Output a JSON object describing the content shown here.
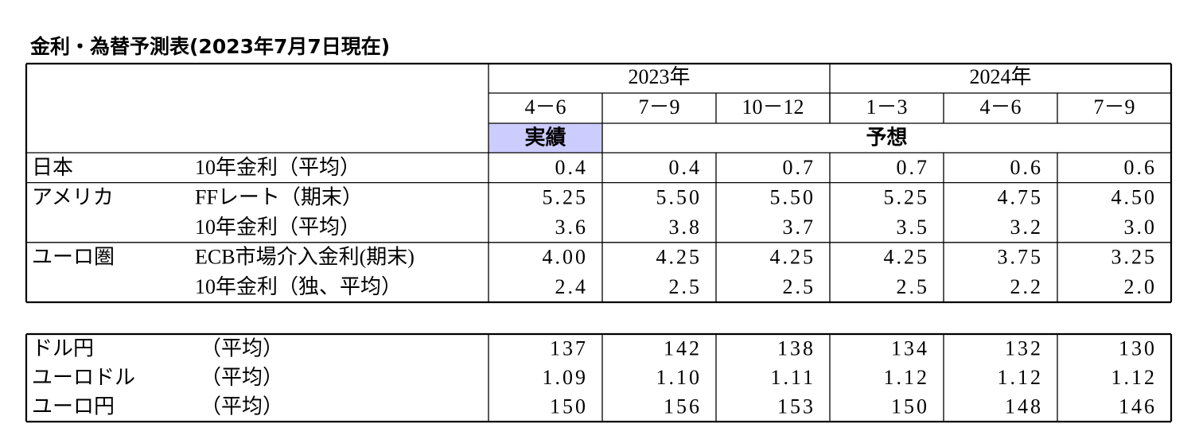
{
  "title": "金利・為替予測表(2023年7月7日現在)",
  "table": {
    "year_headers": [
      "2023年",
      "2024年"
    ],
    "periods": [
      "4－6",
      "7－9",
      "10－12",
      "1－3",
      "4－6",
      "7－9"
    ],
    "status": [
      "実績",
      "予想"
    ],
    "groups": [
      {
        "region": "日本",
        "rows": [
          {
            "label": "10年金利（平均）",
            "values": [
              "0.4",
              "0.4",
              "0.7",
              "0.7",
              "0.6",
              "0.6"
            ]
          }
        ]
      },
      {
        "region": "アメリカ",
        "rows": [
          {
            "label": "FFレート（期末）",
            "values": [
              "5.25",
              "5.50",
              "5.50",
              "5.25",
              "4.75",
              "4.50"
            ]
          },
          {
            "label": "10年金利（平均）",
            "values": [
              "3.6",
              "3.8",
              "3.7",
              "3.5",
              "3.2",
              "3.0"
            ]
          }
        ]
      },
      {
        "region": "ユーロ圏",
        "rows": [
          {
            "label": "ECB市場介入金利(期末)",
            "values": [
              "4.00",
              "4.25",
              "4.25",
              "4.25",
              "3.75",
              "3.25"
            ]
          },
          {
            "label": "10年金利（独、平均）",
            "values": [
              "2.4",
              "2.5",
              "2.5",
              "2.5",
              "2.2",
              "2.0"
            ]
          }
        ]
      }
    ]
  },
  "fx_table": {
    "rows": [
      {
        "label": "ドル円",
        "note": "（平均）",
        "values": [
          "137",
          "142",
          "138",
          "134",
          "132",
          "130"
        ]
      },
      {
        "label": "ユーロドル",
        "note": "（平均）",
        "values": [
          "1.09",
          "1.10",
          "1.11",
          "1.12",
          "1.12",
          "1.12"
        ]
      },
      {
        "label": "ユーロ円",
        "note": "（平均）",
        "values": [
          "150",
          "156",
          "153",
          "150",
          "148",
          "146"
        ]
      }
    ]
  }
}
